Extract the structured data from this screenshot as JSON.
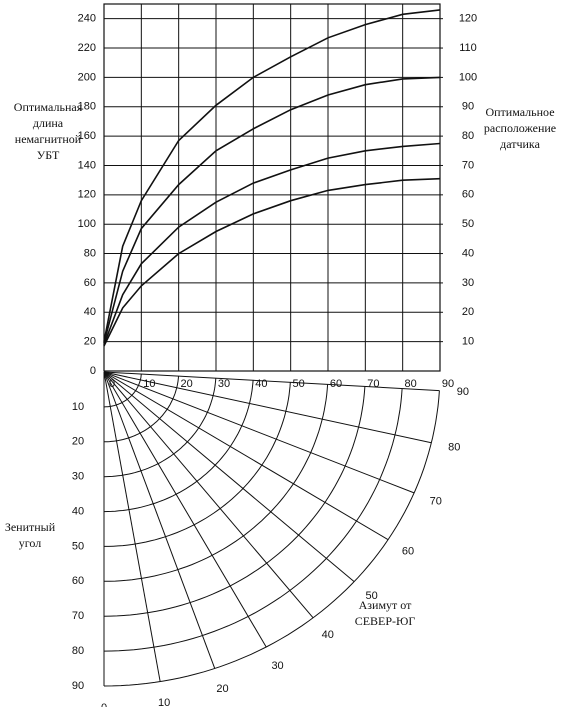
{
  "chart_data": [
    {
      "type": "line",
      "ylabel": [
        "Оптимальная",
        "длина",
        "немагнитной",
        "УБТ"
      ],
      "y2label": [
        "Оптимальное",
        "расположение",
        "датчика"
      ],
      "x": [
        0,
        5,
        10,
        20,
        30,
        40,
        50,
        60,
        70,
        80,
        90
      ],
      "xlim": [
        0,
        90
      ],
      "xticks": [
        0,
        10,
        20,
        30,
        40,
        50,
        60,
        70,
        80,
        90
      ],
      "ylim": [
        0,
        250
      ],
      "yticks": [
        0,
        20,
        40,
        60,
        80,
        100,
        120,
        140,
        160,
        180,
        200,
        220,
        240
      ],
      "y2lim": [
        0,
        125
      ],
      "y2ticks": [
        10,
        20,
        30,
        40,
        50,
        60,
        70,
        80,
        90,
        100,
        110,
        120
      ],
      "grid": true,
      "series": [
        {
          "color": "#111111",
          "values": [
            20,
            85,
            116,
            157,
            181,
            200,
            214,
            227,
            236,
            243,
            246
          ]
        },
        {
          "color": "#111111",
          "values": [
            19,
            68,
            97,
            127,
            150,
            165,
            178,
            188,
            195,
            199,
            200
          ]
        },
        {
          "color": "#111111",
          "values": [
            18,
            52,
            73,
            98,
            115,
            128,
            137,
            145,
            150,
            153,
            155
          ]
        },
        {
          "color": "#111111",
          "values": [
            17,
            43,
            58,
            80,
            95,
            107,
            116,
            123,
            127,
            130,
            131
          ]
        }
      ]
    },
    {
      "type": "polar",
      "zenith_label": [
        "Зенитный",
        "угол"
      ],
      "azimuth_label": [
        "Азимут от",
        "СЕВЕР-ЮГ"
      ],
      "zlim": [
        0,
        90
      ],
      "zenith_ticks": [
        10,
        20,
        30,
        40,
        50,
        60,
        70,
        80,
        90
      ],
      "alim": [
        0,
        90
      ],
      "azimuth_ticks": [
        0,
        10,
        20,
        30,
        40,
        50,
        60,
        70,
        80,
        90
      ]
    }
  ]
}
